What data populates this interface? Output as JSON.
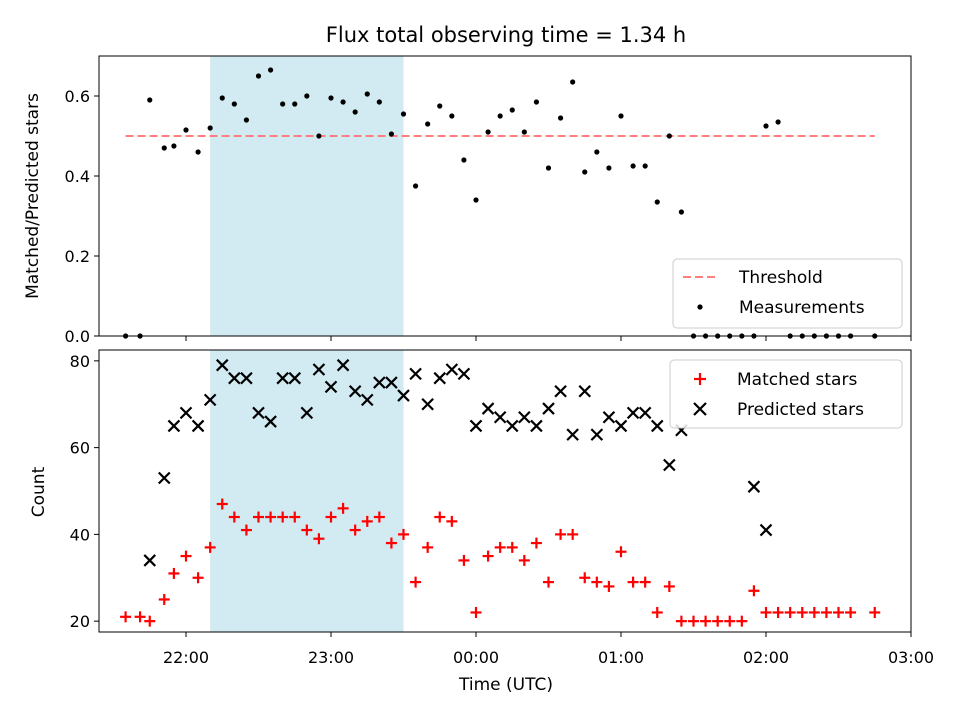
{
  "chart_data": [
    {
      "type": "scatter",
      "title": "Flux total observing time = 1.34 h",
      "xlabel": "",
      "ylabel": "Matched/Predicted stars",
      "ylim": [
        0,
        0.7
      ],
      "yticks": [
        "0.0",
        "0.2",
        "0.4",
        "0.6"
      ],
      "xlim": [
        "21:24",
        "03:00"
      ],
      "shaded_interval": [
        "22:10",
        "23:30"
      ],
      "shade_color": "#add8e6",
      "legend_position": "bottom-right",
      "series": [
        {
          "name": "Threshold",
          "style": "dashed-line",
          "color": "#ff7f7f",
          "x": [
            "21:35",
            "02:45"
          ],
          "y": [
            0.5,
            0.5
          ]
        },
        {
          "name": "Measurements",
          "style": "dot",
          "color": "#000000",
          "x": [
            "21:35",
            "21:41",
            "21:45",
            "21:51",
            "21:55",
            "22:00",
            "22:05",
            "22:10",
            "22:15",
            "22:20",
            "22:25",
            "22:30",
            "22:35",
            "22:40",
            "22:45",
            "22:50",
            "22:55",
            "23:00",
            "23:05",
            "23:10",
            "23:15",
            "23:20",
            "23:25",
            "23:30",
            "23:35",
            "23:40",
            "23:45",
            "23:50",
            "23:55",
            "00:00",
            "00:05",
            "00:10",
            "00:15",
            "00:20",
            "00:25",
            "00:30",
            "00:35",
            "00:40",
            "00:45",
            "00:50",
            "00:55",
            "01:00",
            "01:05",
            "01:10",
            "01:15",
            "01:20",
            "01:25",
            "01:30",
            "01:35",
            "01:40",
            "01:45",
            "01:50",
            "01:55",
            "02:00",
            "02:05",
            "02:10",
            "02:15",
            "02:20",
            "02:25",
            "02:30",
            "02:35",
            "02:45"
          ],
          "y": [
            0.0,
            0.0,
            0.59,
            0.47,
            0.475,
            0.515,
            0.46,
            0.52,
            0.595,
            0.58,
            0.54,
            0.65,
            0.665,
            0.58,
            0.58,
            0.6,
            0.5,
            0.595,
            0.585,
            0.56,
            0.605,
            0.585,
            0.505,
            0.555,
            0.375,
            0.53,
            0.575,
            0.55,
            0.44,
            0.34,
            0.51,
            0.55,
            0.565,
            0.51,
            0.585,
            0.42,
            0.545,
            0.635,
            0.41,
            0.46,
            0.42,
            0.55,
            0.425,
            0.425,
            0.335,
            0.5,
            0.31,
            0.0,
            0.0,
            0.0,
            0.0,
            0.0,
            0.0,
            0.525,
            0.535,
            0.0,
            0.0,
            0.0,
            0.0,
            0.0,
            0.0,
            0.0
          ]
        }
      ]
    },
    {
      "type": "scatter",
      "title": "",
      "xlabel": "Time (UTC)",
      "ylabel": "Count",
      "ylim": [
        17.5,
        82.5
      ],
      "yticks": [
        "20",
        "40",
        "60",
        "80"
      ],
      "xticks": [
        "22:00",
        "23:00",
        "00:00",
        "01:00",
        "02:00",
        "03:00"
      ],
      "xlim": [
        "21:24",
        "03:00"
      ],
      "shaded_interval": [
        "22:10",
        "23:30"
      ],
      "shade_color": "#add8e6",
      "legend_position": "top-right",
      "series": [
        {
          "name": "Matched stars",
          "style": "plus",
          "color": "#ff0000",
          "x": [
            "21:35",
            "21:41",
            "21:45",
            "21:51",
            "21:55",
            "22:00",
            "22:05",
            "22:10",
            "22:15",
            "22:20",
            "22:25",
            "22:30",
            "22:35",
            "22:40",
            "22:45",
            "22:50",
            "22:55",
            "23:00",
            "23:05",
            "23:10",
            "23:15",
            "23:20",
            "23:25",
            "23:30",
            "23:35",
            "23:40",
            "23:45",
            "23:50",
            "23:55",
            "00:00",
            "00:05",
            "00:10",
            "00:15",
            "00:20",
            "00:25",
            "00:30",
            "00:35",
            "00:40",
            "00:45",
            "00:50",
            "00:55",
            "01:00",
            "01:05",
            "01:10",
            "01:15",
            "01:20",
            "01:25",
            "01:30",
            "01:35",
            "01:40",
            "01:45",
            "01:50",
            "01:55",
            "02:00",
            "02:05",
            "02:10",
            "02:15",
            "02:20",
            "02:25",
            "02:30",
            "02:35",
            "02:45"
          ],
          "y": [
            21,
            21,
            20,
            25,
            31,
            35,
            30,
            37,
            47,
            44,
            41,
            44,
            44,
            44,
            44,
            41,
            39,
            44,
            46,
            41,
            43,
            44,
            38,
            40,
            29,
            37,
            44,
            43,
            34,
            22,
            35,
            37,
            37,
            34,
            38,
            29,
            40,
            40,
            30,
            29,
            28,
            36,
            29,
            29,
            22,
            28,
            20,
            20,
            20,
            20,
            20,
            20,
            27,
            22,
            22,
            22,
            22,
            22,
            22,
            22,
            22,
            22
          ]
        },
        {
          "name": "Predicted stars",
          "style": "x",
          "color": "#000000",
          "x": [
            "21:45",
            "21:51",
            "21:55",
            "22:00",
            "22:05",
            "22:10",
            "22:15",
            "22:20",
            "22:25",
            "22:30",
            "22:35",
            "22:40",
            "22:45",
            "22:50",
            "22:55",
            "23:00",
            "23:05",
            "23:10",
            "23:15",
            "23:20",
            "23:25",
            "23:30",
            "23:35",
            "23:40",
            "23:45",
            "23:50",
            "23:55",
            "00:00",
            "00:05",
            "00:10",
            "00:15",
            "00:20",
            "00:25",
            "00:30",
            "00:35",
            "00:40",
            "00:45",
            "00:50",
            "00:55",
            "01:00",
            "01:05",
            "01:10",
            "01:15",
            "01:20",
            "01:25",
            "01:30",
            "01:35",
            "01:40",
            "01:45",
            "01:50",
            "01:55",
            "02:00",
            "02:05",
            "02:10",
            "02:15",
            "02:20",
            "02:25",
            "02:30",
            "02:35",
            "02:45"
          ],
          "y": [
            34,
            53,
            65,
            68,
            65,
            71,
            79,
            76,
            76,
            68,
            66,
            76,
            76,
            68,
            78,
            74,
            79,
            73,
            71,
            75,
            75,
            72,
            77,
            70,
            76,
            78,
            77,
            65,
            69,
            67,
            65,
            67,
            65,
            69,
            73,
            63,
            73,
            63,
            67,
            65,
            68,
            68,
            65,
            56,
            64,
            null,
            null,
            null,
            null,
            null,
            51,
            41,
            null,
            null,
            null,
            null,
            null,
            null,
            null,
            null
          ]
        }
      ]
    }
  ]
}
